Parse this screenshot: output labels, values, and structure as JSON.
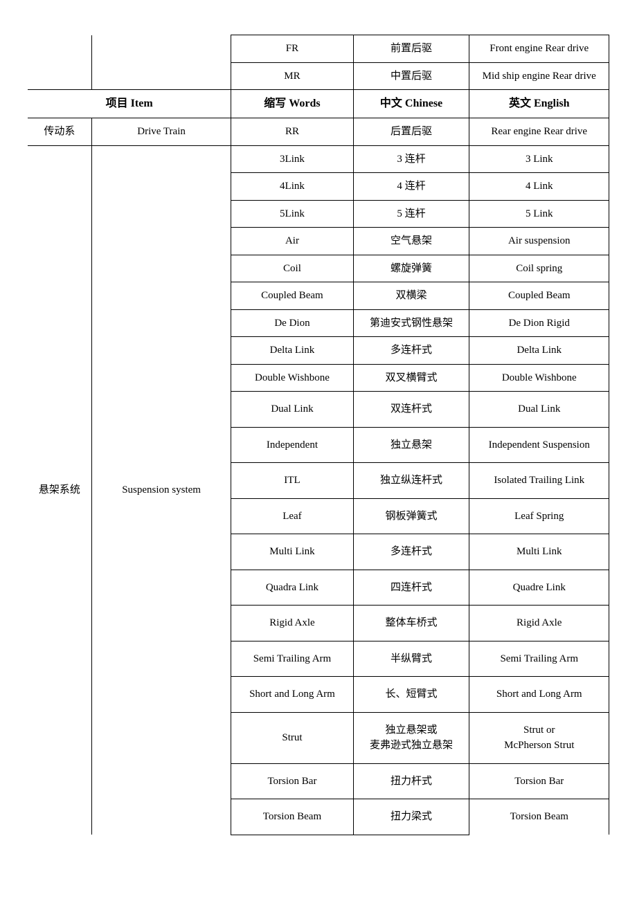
{
  "headers": {
    "item": "项目 Item",
    "words": "缩写 Words",
    "chinese": "中文 Chinese",
    "english": "英文 English"
  },
  "top_rows": [
    {
      "words": "FR",
      "chinese": "前置后驱",
      "english": "Front engine Rear drive"
    },
    {
      "words": "MR",
      "chinese": "中置后驱",
      "english": "Mid ship engine Rear drive"
    }
  ],
  "drive_train": {
    "cat_zh": "传动系",
    "cat_en": "Drive Train",
    "rows": [
      {
        "words": "RR",
        "chinese": "后置后驱",
        "english": "Rear engine Rear drive"
      }
    ]
  },
  "suspension": {
    "cat_zh": "悬架系统",
    "cat_en": "Suspension system",
    "rows": [
      {
        "words": "3Link",
        "chinese": "3 连杆",
        "english": "3 Link"
      },
      {
        "words": "4Link",
        "chinese": "4 连杆",
        "english": "4 Link"
      },
      {
        "words": "5Link",
        "chinese": "5 连杆",
        "english": "5 Link"
      },
      {
        "words": "Air",
        "chinese": "空气悬架",
        "english": "Air suspension"
      },
      {
        "words": "Coil",
        "chinese": "螺旋弹簧",
        "english": "Coil spring"
      },
      {
        "words": "Coupled Beam",
        "chinese": "双横梁",
        "english": "Coupled Beam"
      },
      {
        "words": "De Dion",
        "chinese": "第迪安式钢性悬架",
        "english": "De Dion Rigid"
      },
      {
        "words": "Delta Link",
        "chinese": "多连杆式",
        "english": "Delta Link"
      },
      {
        "words": "Double Wishbone",
        "chinese": "双叉横臂式",
        "english": "Double Wishbone"
      },
      {
        "words": "Dual Link",
        "chinese": "双连杆式",
        "english": "Dual Link",
        "tall": true
      },
      {
        "words": "Independent",
        "chinese": "独立悬架",
        "english": "Independent Suspension",
        "tall": true
      },
      {
        "words": "ITL",
        "chinese": "独立纵连杆式",
        "english": "Isolated Trailing Link",
        "tall": true
      },
      {
        "words": "Leaf",
        "chinese": "钢板弹簧式",
        "english": "Leaf Spring",
        "tall": true
      },
      {
        "words": "Multi Link",
        "chinese": "多连杆式",
        "english": "Multi Link",
        "tall": true
      },
      {
        "words": "Quadra Link",
        "chinese": "四连杆式",
        "english": "Quadre Link",
        "tall": true
      },
      {
        "words": "Rigid Axle",
        "chinese": "整体车桥式",
        "english": "Rigid Axle",
        "tall": true
      },
      {
        "words": "Semi Trailing Arm",
        "chinese": "半纵臂式",
        "english": "Semi Trailing Arm",
        "tall": true
      },
      {
        "words": "Short and Long Arm",
        "chinese": "长、短臂式",
        "english": "Short and Long Arm",
        "tall": true
      },
      {
        "words": "Strut",
        "chinese": "独立悬架或\n麦弗逊式独立悬架",
        "english": "Strut or\nMcPherson Strut",
        "tall": true
      },
      {
        "words": "Torsion Bar",
        "chinese": "扭力杆式",
        "english": "Torsion Bar",
        "tall": true
      },
      {
        "words": "Torsion Beam",
        "chinese": "扭力梁式",
        "english": "Torsion Beam",
        "tall": true
      }
    ]
  }
}
